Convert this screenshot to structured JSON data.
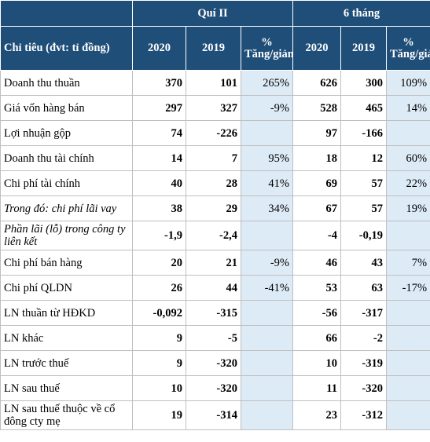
{
  "table": {
    "group_headers": [
      "Quí II",
      "6 tháng"
    ],
    "columns": [
      "Chỉ tiêu (đvt: tỉ đồng)",
      "2020",
      "2019",
      "% Tăng/giảm",
      "2020",
      "2019",
      "% Tăng/giảm"
    ],
    "rows": [
      [
        "Doanh thu thuần",
        "370",
        "101",
        "265%",
        "626",
        "300",
        "109%"
      ],
      [
        "Giá vốn hàng bán",
        "297",
        "327",
        "-9%",
        "528",
        "465",
        "14%"
      ],
      [
        "Lợi nhuận gộp",
        "74",
        "-226",
        null,
        "97",
        "-166",
        null
      ],
      [
        "Doanh thu tài chính",
        "14",
        "7",
        "95%",
        "18",
        "12",
        "60%"
      ],
      [
        "Chi phí tài chính",
        "40",
        "28",
        "41%",
        "69",
        "57",
        "22%"
      ],
      [
        "Trong đó: chi phí lãi vay",
        "38",
        "29",
        "34%",
        "67",
        "57",
        "19%"
      ],
      [
        "Phần lãi (lỗ) trong công ty liên kết",
        "-1,9",
        "-2,4",
        null,
        "-4",
        "-0,19",
        null
      ],
      [
        "Chi phí bán hàng",
        "20",
        "21",
        "-9%",
        "46",
        "43",
        "7%"
      ],
      [
        "Chi phí QLDN",
        "26",
        "44",
        "-41%",
        "53",
        "63",
        "-17%"
      ],
      [
        "LN thuần từ HĐKD",
        "-0,092",
        "-315",
        null,
        "-56",
        "-317",
        null
      ],
      [
        "LN khác",
        "9",
        "-5",
        null,
        "66",
        "-2",
        null
      ],
      [
        "LN trước thuế",
        "9",
        "-320",
        null,
        "10",
        "-319",
        null
      ],
      [
        "LN sau thuế",
        "10",
        "-320",
        null,
        "11",
        "-320",
        null
      ],
      [
        "LN sau thuế thuộc về cổ đông cty mẹ",
        "19",
        "-314",
        null,
        "23",
        "-312",
        null
      ]
    ],
    "italic_rows": [
      5,
      6
    ]
  }
}
